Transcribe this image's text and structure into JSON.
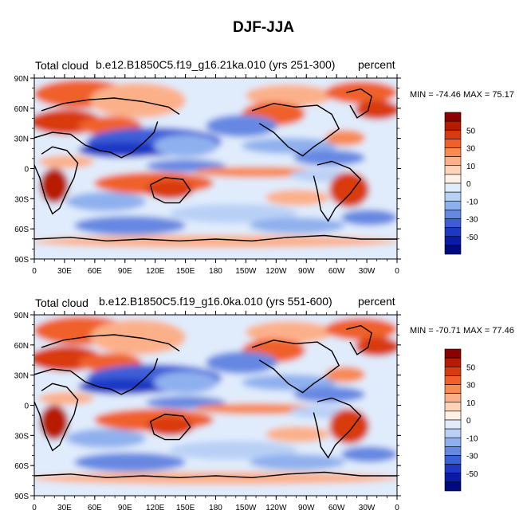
{
  "title": "DJF-JJA",
  "panels": [
    {
      "left_label": "Total cloud",
      "center_label": "b.e12.B1850C5.f19_g16.21ka.010 (yrs 251-300)",
      "right_label": "percent",
      "minmax": "MIN = -74.46  MAX =  75.17"
    },
    {
      "left_label": "Total cloud",
      "center_label": "b.e12.B1850C5.f19_g16.0ka.010 (yrs 551-600)",
      "right_label": "percent",
      "minmax": "MIN = -70.71  MAX =  77.46"
    }
  ],
  "map_axes": {
    "lat_labels": [
      "90N",
      "60N",
      "30N",
      "0",
      "30S",
      "60S",
      "90S"
    ],
    "lon_labels": [
      "0",
      "30E",
      "60E",
      "90E",
      "120E",
      "150E",
      "180",
      "150W",
      "120W",
      "90W",
      "60W",
      "30W",
      "0"
    ]
  },
  "colorbar": {
    "labels": [
      "50",
      "30",
      "10",
      "0",
      "-10",
      "-30",
      "-50"
    ],
    "colors_top_to_bottom": [
      "#8b0000",
      "#b81a00",
      "#d93a10",
      "#f0602a",
      "#f78a55",
      "#fbb08a",
      "#fdd4b8",
      "#fff0e6",
      "#e0ecfc",
      "#b9d0f6",
      "#8fb0ee",
      "#6688e2",
      "#3c5ed8",
      "#1c38c4",
      "#0a1ca6",
      "#000a80"
    ]
  },
  "chart_data": {
    "type": "heatmap",
    "title": "DJF-JJA",
    "variable": "Total cloud",
    "units": "percent",
    "xlabel_ticks": [
      "0",
      "30E",
      "60E",
      "90E",
      "120E",
      "150E",
      "180",
      "150W",
      "120W",
      "90W",
      "60W",
      "30W",
      "0"
    ],
    "ylabel_ticks": [
      "90N",
      "60N",
      "30N",
      "0",
      "30S",
      "60S",
      "90S"
    ],
    "xlim": [
      0,
      360
    ],
    "ylim": [
      -90,
      90
    ],
    "contour_levels": [
      -70,
      -60,
      -50,
      -40,
      -30,
      -20,
      -10,
      -5,
      5,
      10,
      20,
      30,
      40,
      50,
      60,
      70
    ],
    "colorbar_labels": [
      "50",
      "30",
      "10",
      "0",
      "-10",
      "-30",
      "-50"
    ],
    "panels": [
      {
        "case": "b.e12.B1850C5.f19_g16.21ka.010 (yrs 251-300)",
        "min": -74.46,
        "max": 75.17
      },
      {
        "case": "b.e12.B1850C5.f19_g16.0ka.010 (yrs 551-600)",
        "min": -70.71,
        "max": 77.46
      }
    ]
  }
}
